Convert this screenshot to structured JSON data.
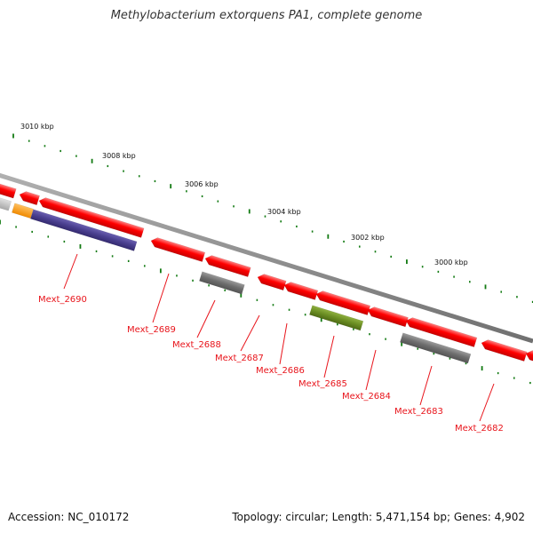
{
  "title": "Methylobacterium extorquens PA1, complete genome",
  "footer": {
    "accession": "Accession: NC_010172",
    "topology": "Topology: circular; Length: 5,471,154 bp; Genes: 4,902"
  },
  "colors": {
    "backbone": "#8c8c8c",
    "tick": "#127a12",
    "cds_forward": "#ff0000",
    "cds_reverse": "#ff0000",
    "label": "#e8141b",
    "gene_grey": "#6e6e6e",
    "gene_light_grey": "#c8c8c8",
    "gene_orange": "#ff9900",
    "gene_purple": "#4a3f8f",
    "gene_olive": "#6b8e23"
  },
  "scale": {
    "unit": "kbp",
    "labels": [
      "3010 kbp",
      "3008 kbp",
      "3006 kbp",
      "3004 kbp",
      "3002 kbp",
      "3000 kbp"
    ]
  },
  "genes": [
    {
      "label": "Mext_2690",
      "type": "purple"
    },
    {
      "label": "Mext_2689",
      "type": "red"
    },
    {
      "label": "Mext_2688",
      "type": "grey"
    },
    {
      "label": "Mext_2687",
      "type": "red"
    },
    {
      "label": "Mext_2686",
      "type": "red"
    },
    {
      "label": "Mext_2685",
      "type": "olive"
    },
    {
      "label": "Mext_2684",
      "type": "red"
    },
    {
      "label": "Mext_2683",
      "type": "grey"
    },
    {
      "label": "Mext_2682",
      "type": "red"
    }
  ]
}
